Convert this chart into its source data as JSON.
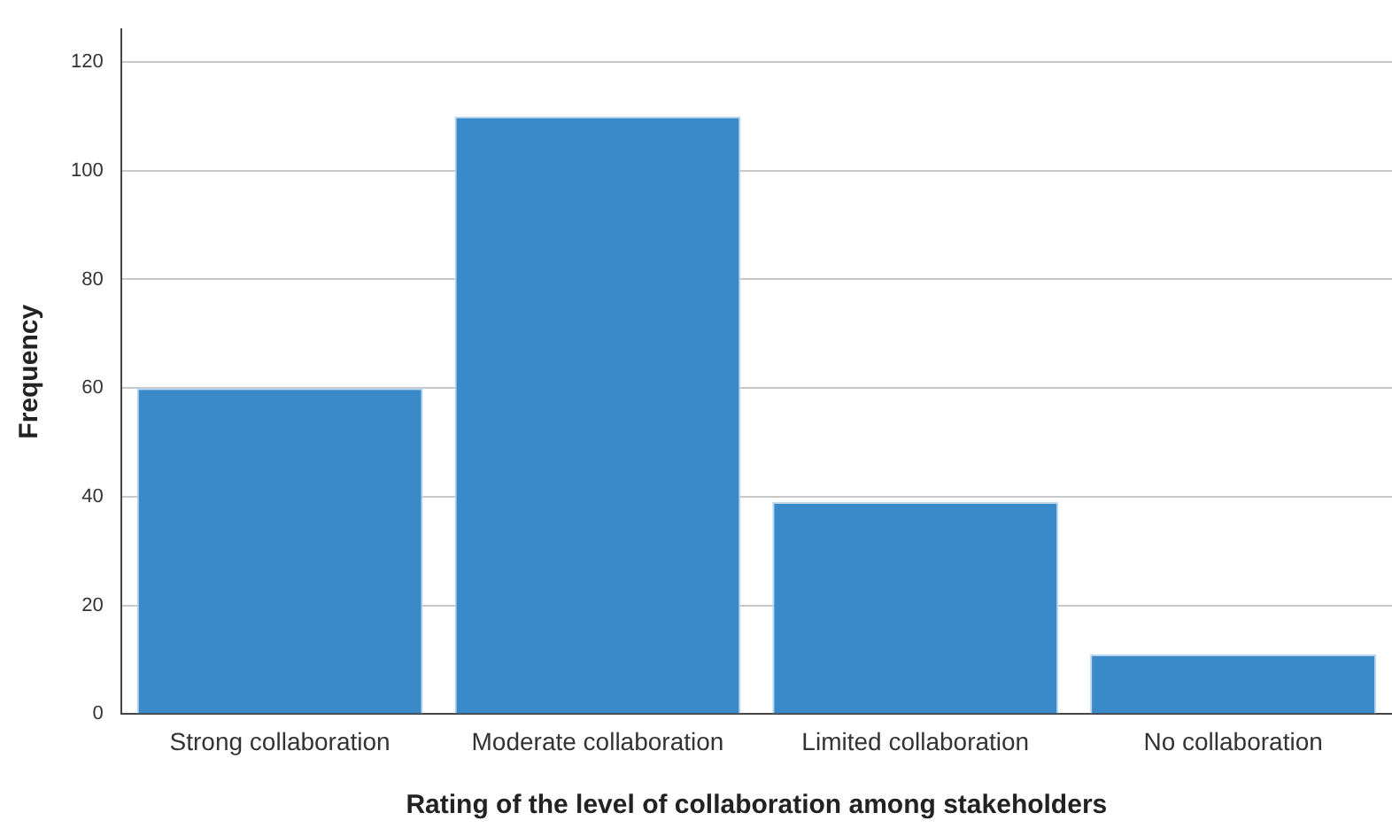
{
  "chart_data": {
    "type": "bar",
    "xlabel": "Rating of the level of collaboration among stakeholders",
    "ylabel": "Frequency",
    "categories": [
      "Strong collaboration",
      "Moderate collaboration",
      "Limited collaboration",
      "No collaboration"
    ],
    "values": [
      60,
      110,
      39,
      11
    ],
    "color": "#3a8ac9",
    "ylim": [
      0,
      126
    ],
    "yticks": [
      0,
      20,
      40,
      60,
      80,
      100,
      120
    ],
    "grid": "y"
  }
}
